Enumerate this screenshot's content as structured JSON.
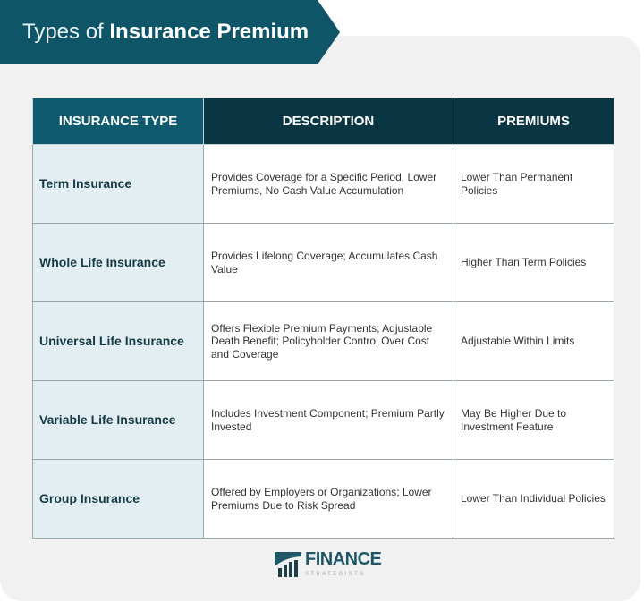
{
  "title": {
    "light": "Types of ",
    "bold": "Insurance Premium"
  },
  "table": {
    "headers": [
      "INSURANCE TYPE",
      "DESCRIPTION",
      "PREMIUMS"
    ],
    "rows": [
      {
        "type": "Term Insurance",
        "description": "Provides Coverage for a Specific Period, Lower Premiums, No Cash Value Accumulation",
        "premiums": "Lower Than Permanent Policies"
      },
      {
        "type": "Whole Life Insurance",
        "description": "Provides Lifelong Coverage; Accumulates Cash Value",
        "premiums": "Higher Than Term Policies"
      },
      {
        "type": "Universal Life Insurance",
        "description": "Offers Flexible Premium Payments; Adjustable Death Benefit; Policyholder Control Over Cost and Coverage",
        "premiums": "Adjustable Within Limits"
      },
      {
        "type": "Variable Life Insurance",
        "description": "Includes Investment Component; Premium Partly Invested",
        "premiums": "May Be Higher Due to Investment Feature"
      },
      {
        "type": "Group Insurance",
        "description": "Offered by Employers or Organizations; Lower Premiums Due to Risk Spread",
        "premiums": "Lower Than Individual Policies"
      }
    ]
  },
  "logo": {
    "name": "FINANCE",
    "sub": "STRATEGISTS"
  }
}
